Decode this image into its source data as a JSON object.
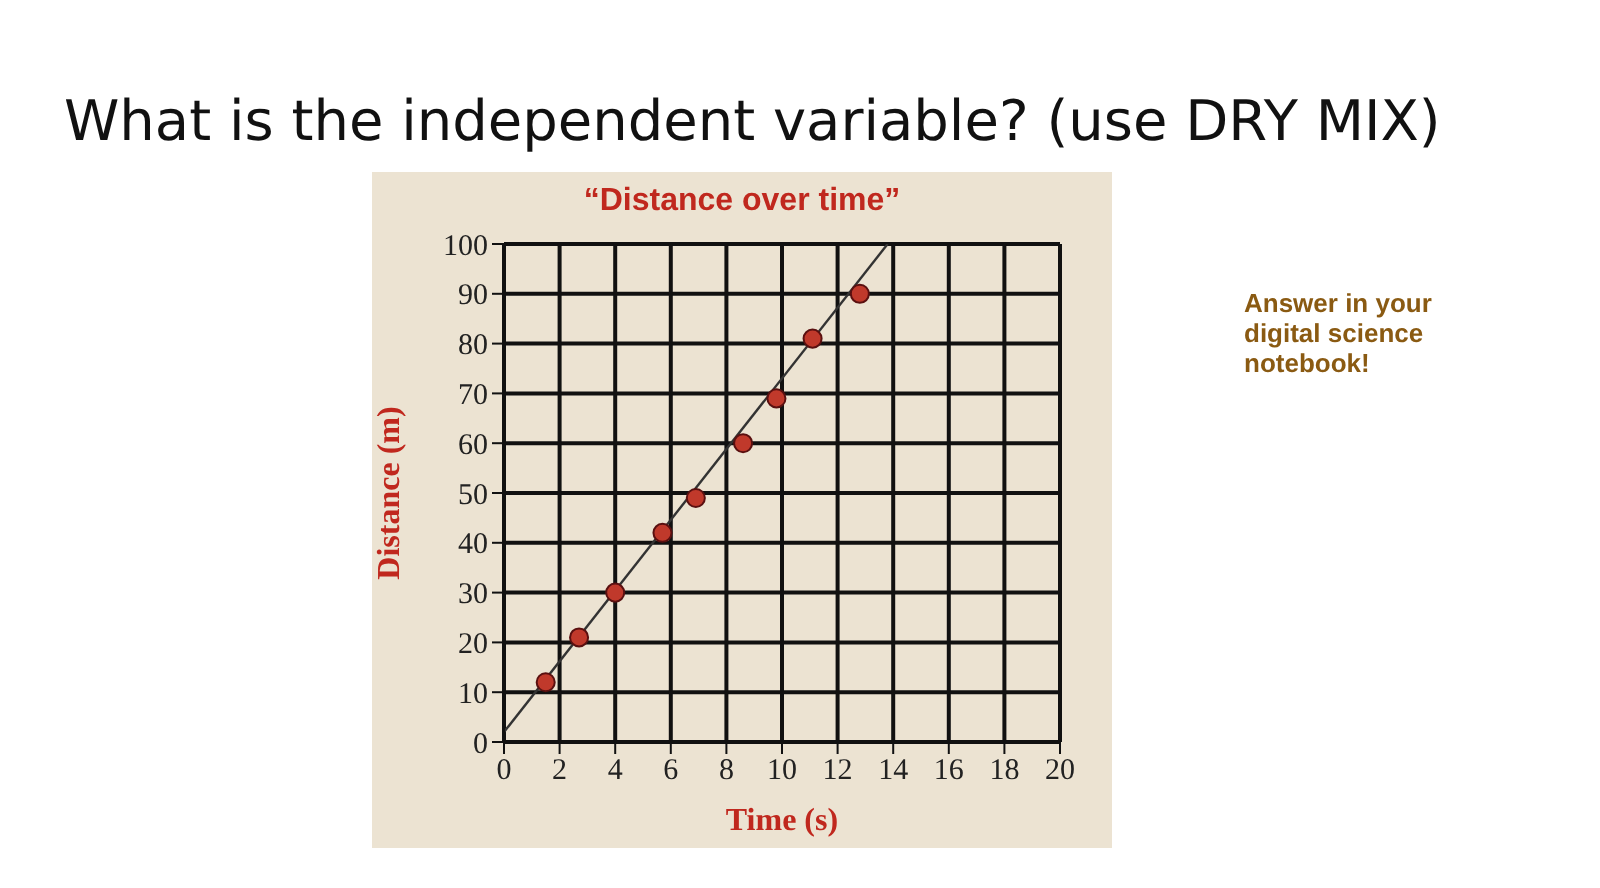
{
  "chart_data": {
    "type": "scatter",
    "title": "What is the independent variable? (use DRY MIX)",
    "subtitle": "“Distance over time”",
    "xlabel": "Time (s)",
    "ylabel": "Distance (m)",
    "annotations": [
      "Answer in your digital science notebook!"
    ],
    "series": [
      {
        "type": "scatter",
        "color": "#c0392b",
        "x": [
          1.5,
          2.7,
          4.0,
          5.7,
          6.9,
          8.6,
          9.8,
          11.1,
          12.8
        ],
        "values": [
          12,
          21,
          30,
          42,
          49,
          60,
          69,
          81,
          90
        ],
        "marker": "circle"
      },
      {
        "type": "line",
        "color": "#333333",
        "x": [
          0,
          13.8
        ],
        "values": [
          2,
          100
        ],
        "marker": "none",
        "line_style": "solid"
      }
    ],
    "xlim": [
      0,
      20
    ],
    "xticks": [
      0,
      2,
      4,
      6,
      8,
      10,
      12,
      14,
      16,
      18,
      20
    ],
    "ylim": [
      0,
      100
    ],
    "yticks": [
      0,
      10,
      20,
      30,
      40,
      50,
      60,
      70,
      80,
      90,
      100
    ],
    "grid": true
  }
}
